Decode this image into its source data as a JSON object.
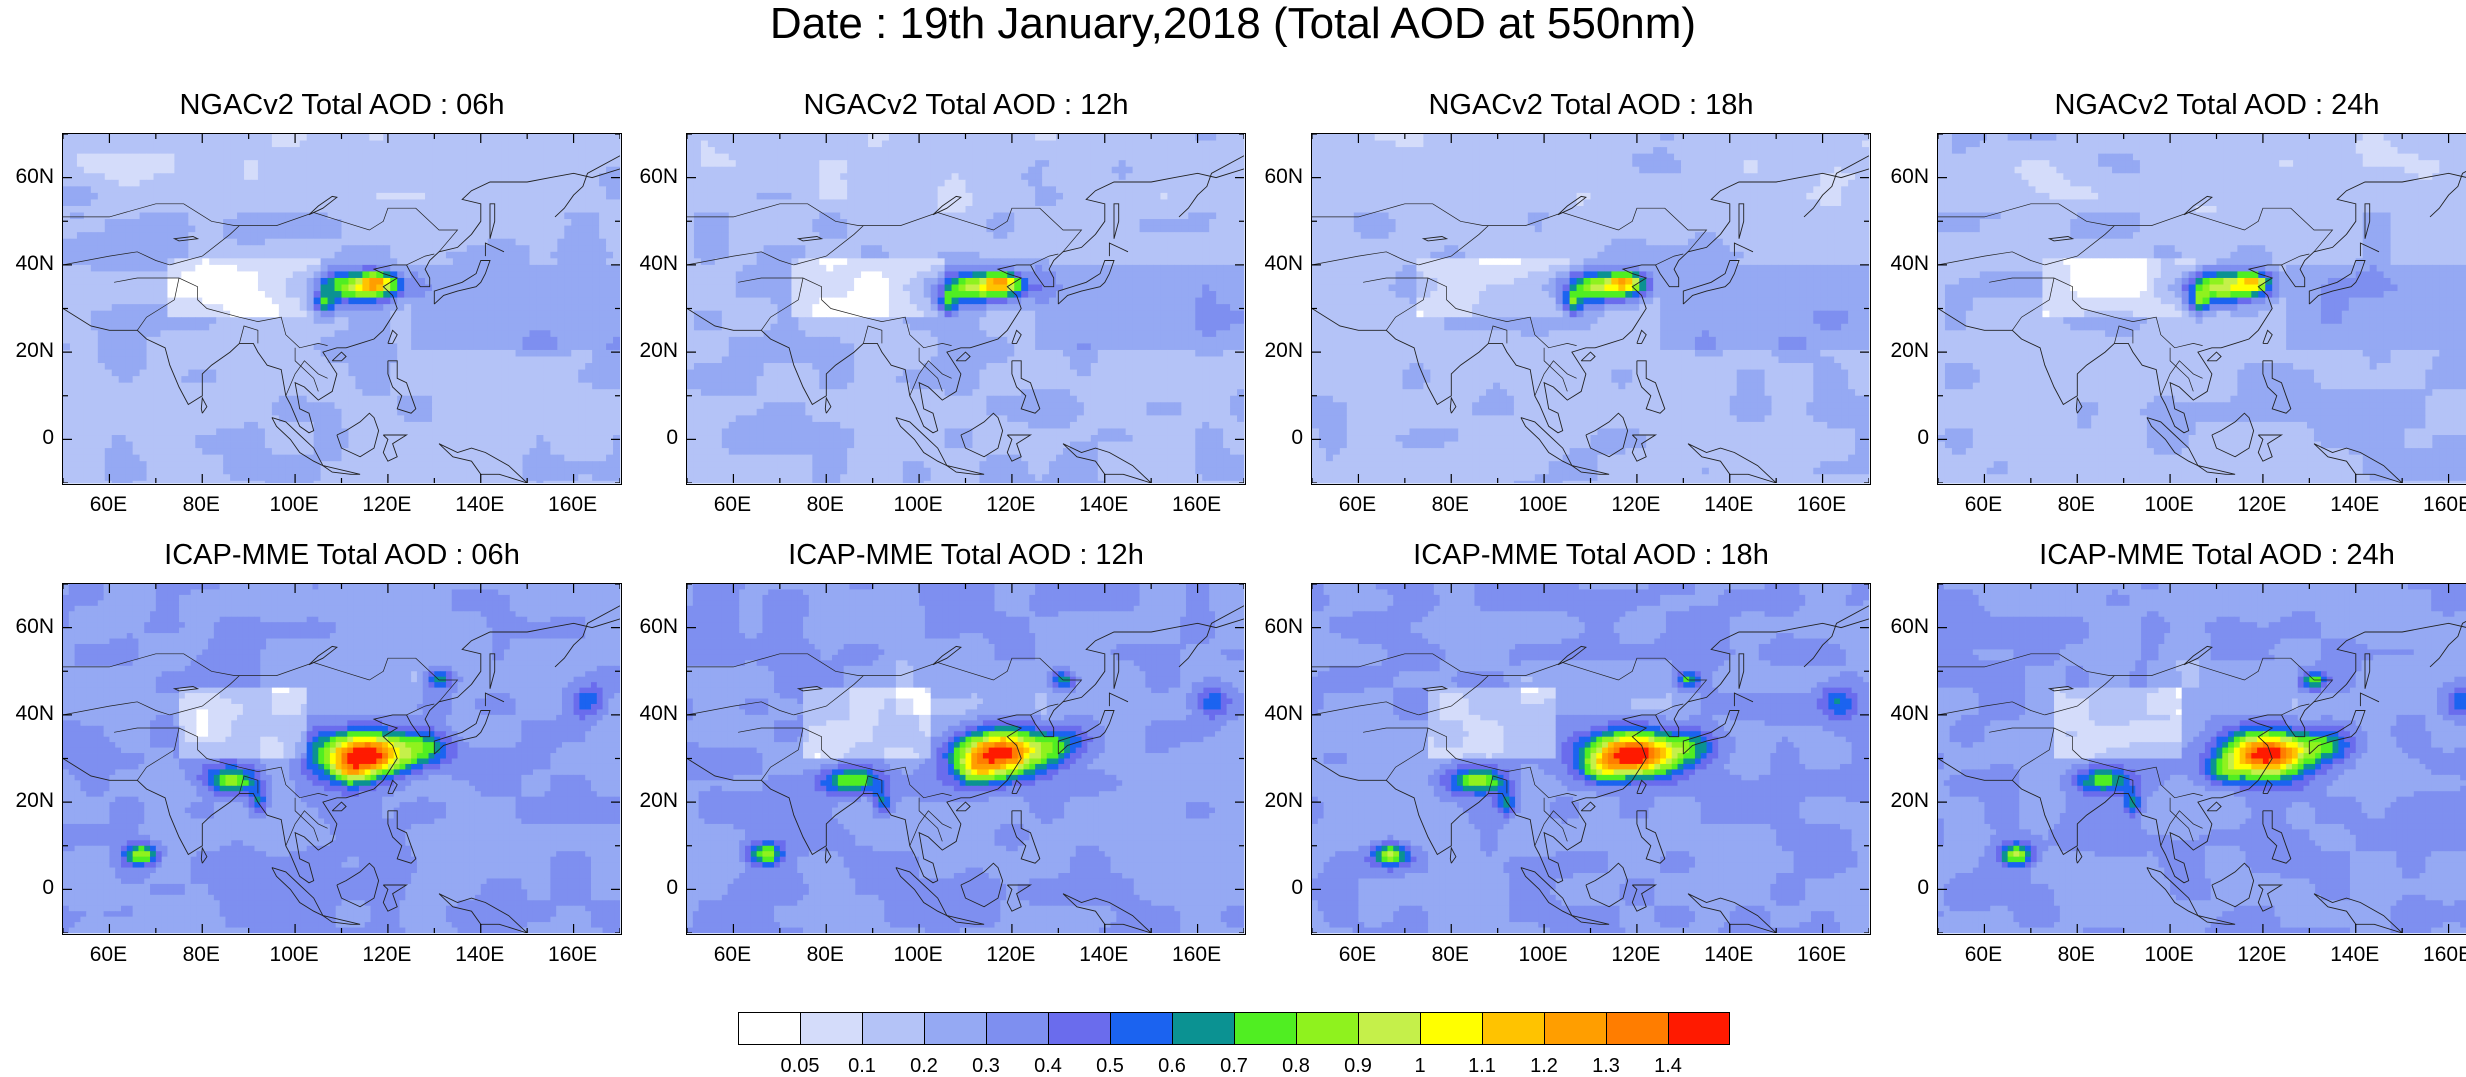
{
  "figure": {
    "title": "Date : 19th January,2018 (Total AOD at 550nm)"
  },
  "panels": [
    {
      "title": "NGACv2 Total AOD : 06h",
      "model": "NGAC",
      "hour": "06h"
    },
    {
      "title": "NGACv2 Total AOD : 12h",
      "model": "NGAC",
      "hour": "12h"
    },
    {
      "title": "NGACv2 Total AOD : 18h",
      "model": "NGAC",
      "hour": "18h"
    },
    {
      "title": "NGACv2 Total AOD : 24h",
      "model": "NGAC",
      "hour": "24h"
    },
    {
      "title": "ICAP-MME Total AOD : 06h",
      "model": "ICAP",
      "hour": "06h"
    },
    {
      "title": "ICAP-MME Total AOD : 12h",
      "model": "ICAP",
      "hour": "12h"
    },
    {
      "title": "ICAP-MME Total AOD : 18h",
      "model": "ICAP",
      "hour": "18h"
    },
    {
      "title": "ICAP-MME Total AOD : 24h",
      "model": "ICAP",
      "hour": "24h"
    }
  ],
  "axes": {
    "lon_ticks": [
      "60E",
      "80E",
      "100E",
      "120E",
      "140E",
      "160E"
    ],
    "lon_values": [
      60,
      80,
      100,
      120,
      140,
      160
    ],
    "lat_ticks": [
      "60N",
      "40N",
      "20N",
      "0"
    ],
    "lat_values": [
      60,
      40,
      20,
      0
    ],
    "lon_range": [
      50,
      170
    ],
    "lat_range": [
      -10,
      70
    ]
  },
  "colorbar": {
    "labels": [
      "0.05",
      "0.1",
      "0.2",
      "0.3",
      "0.4",
      "0.5",
      "0.6",
      "0.7",
      "0.8",
      "0.9",
      "1",
      "1.1",
      "1.2",
      "1.3",
      "1.4"
    ],
    "colors": [
      "#ffffff",
      "#d4dcfa",
      "#b4c3f7",
      "#95a9f3",
      "#7e8ff0",
      "#6a6ced",
      "#1b63f0",
      "#0b9292",
      "#50ee22",
      "#8ff21e",
      "#c5f04a",
      "#ffff00",
      "#ffc300",
      "#ff9e00",
      "#ff7d00",
      "#ff1a00"
    ]
  }
}
